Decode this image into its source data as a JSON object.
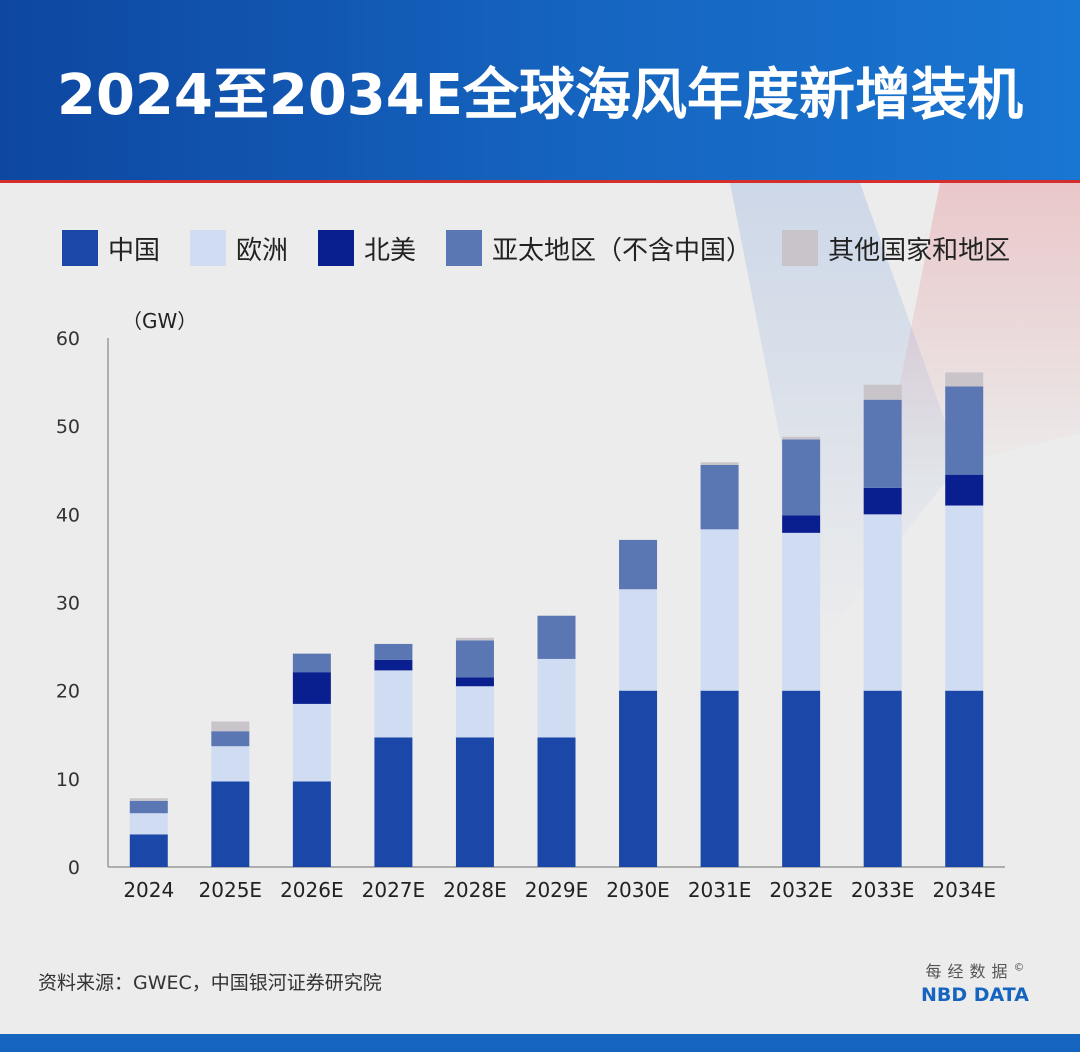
{
  "header": {
    "title": "2024至2034E全球海风年度新增装机"
  },
  "source_text": "资料来源：GWEC，中国银河证券研究院",
  "brand": {
    "cn": "每经数据",
    "en": "NBD DATA",
    "copyright": "©"
  },
  "colors": {
    "china": "#1a47a8",
    "europe": "#cfdcf2",
    "north_america": "#0a1f8f",
    "apac": "#5a76b3",
    "other": "#c9c4c9",
    "header": "#1565c0",
    "axis": "#999999"
  },
  "chart_data": {
    "type": "bar",
    "stacked": true,
    "unit_label": "（GW）",
    "title": "",
    "xlabel": "",
    "ylabel": "",
    "ylim": [
      0,
      60
    ],
    "yticks": [
      0,
      10,
      20,
      30,
      40,
      50,
      60
    ],
    "grid": false,
    "legend_position": "top",
    "categories": [
      "2024",
      "2025E",
      "2026E",
      "2027E",
      "2028E",
      "2029E",
      "2030E",
      "2031E",
      "2032E",
      "2033E",
      "2034E"
    ],
    "series": [
      {
        "key": "china",
        "name": "中国",
        "values": [
          3.7,
          9.7,
          9.7,
          14.7,
          14.7,
          14.7,
          20,
          20,
          20,
          20,
          20
        ]
      },
      {
        "key": "europe",
        "name": "欧洲",
        "values": [
          2.4,
          4.0,
          8.8,
          7.6,
          5.8,
          8.9,
          11.5,
          18.3,
          17.9,
          20.0,
          21.0
        ]
      },
      {
        "key": "north_america",
        "name": "北美",
        "values": [
          0,
          0,
          3.6,
          1.2,
          1.0,
          0,
          0,
          0,
          2.0,
          3.0,
          3.5
        ]
      },
      {
        "key": "apac",
        "name": "亚太地区（不含中国）",
        "values": [
          1.4,
          1.7,
          2.1,
          1.8,
          4.2,
          4.9,
          5.6,
          7.3,
          8.6,
          10.0,
          10.0
        ]
      },
      {
        "key": "other",
        "name": "其他国家和地区",
        "values": [
          0.3,
          1.1,
          0,
          0,
          0.3,
          0,
          0,
          0.3,
          0.3,
          1.7,
          1.6
        ]
      }
    ]
  }
}
